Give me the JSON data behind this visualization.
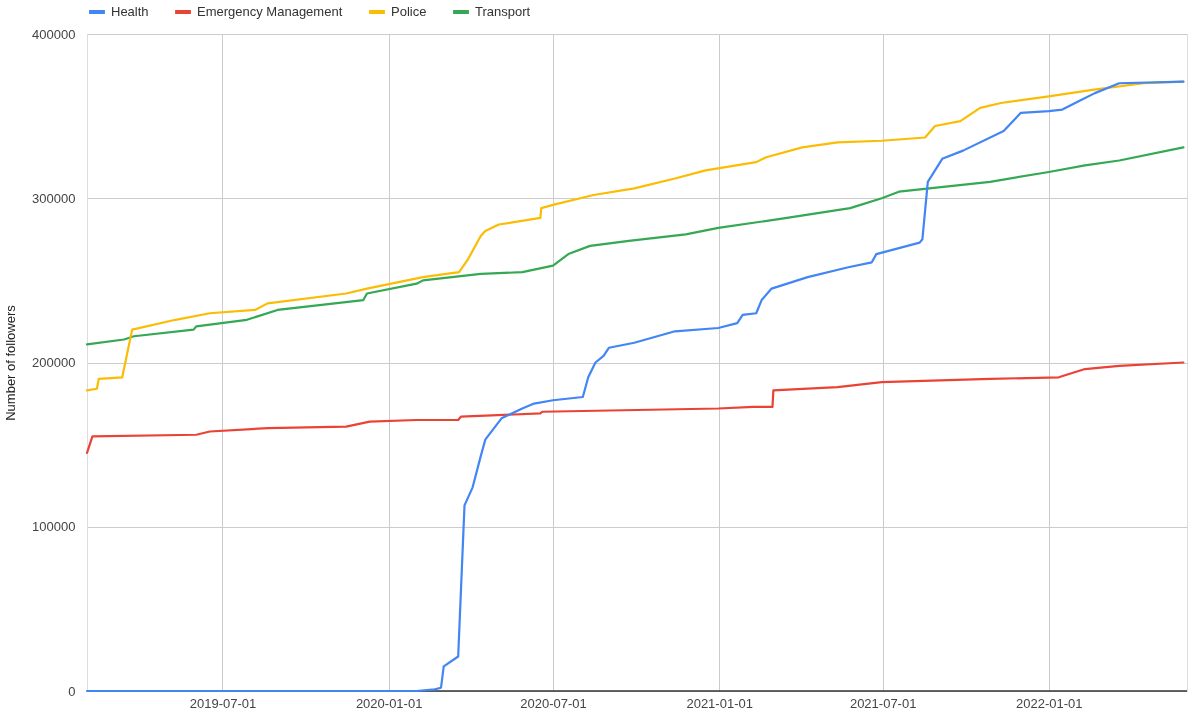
{
  "chart_data": {
    "type": "line",
    "ylabel": "Number of followers",
    "xlim": [
      "2019-02-01",
      "2022-06-03"
    ],
    "xticks": [
      "2019-07-01",
      "2020-01-01",
      "2020-07-01",
      "2021-01-01",
      "2021-07-01",
      "2022-01-01"
    ],
    "ylim": [
      0,
      400000
    ],
    "yticks": [
      0,
      100000,
      200000,
      300000,
      400000
    ],
    "grid": true,
    "legend": "top",
    "line_style": "solid",
    "series": [
      {
        "name": "Health",
        "color": "#4285f4",
        "x": [
          "2019-02-01",
          "2020-02-01",
          "2020-02-21",
          "2020-02-28",
          "2020-03-02",
          "2020-03-18",
          "2020-03-25",
          "2020-04-03",
          "2020-04-12",
          "2020-04-17",
          "2020-05-05",
          "2020-05-28",
          "2020-06-10",
          "2020-07-01",
          "2020-08-03",
          "2020-08-09",
          "2020-08-17",
          "2020-08-26",
          "2020-09-01",
          "2020-09-29",
          "2020-11-13",
          "2020-12-31",
          "2021-01-21",
          "2021-01-27",
          "2021-02-11",
          "2021-02-17",
          "2021-02-28",
          "2021-04-09",
          "2021-05-24",
          "2021-06-19",
          "2021-06-24",
          "2021-08-11",
          "2021-08-14",
          "2021-08-20",
          "2021-09-05",
          "2021-09-28",
          "2021-11-12",
          "2021-12-01",
          "2022-01-01",
          "2022-01-16",
          "2022-02-03",
          "2022-02-21",
          "2022-03-20",
          "2022-05-30"
        ],
        "values": [
          0,
          0,
          1000,
          2000,
          15000,
          21000,
          113000,
          124000,
          143000,
          153000,
          166000,
          172000,
          175000,
          177000,
          179000,
          191000,
          200000,
          204000,
          209000,
          212000,
          219000,
          221000,
          224000,
          229000,
          230000,
          238000,
          245000,
          252000,
          258000,
          261000,
          266000,
          273000,
          275000,
          310000,
          324000,
          329000,
          341000,
          352000,
          353000,
          354000,
          359000,
          364000,
          370000,
          371000
        ]
      },
      {
        "name": "Emergency Management",
        "color": "#ea4335",
        "x": [
          "2019-02-01",
          "2019-02-07",
          "2019-06-02",
          "2019-06-17",
          "2019-08-20",
          "2019-11-15",
          "2019-12-11",
          "2020-02-01",
          "2020-03-18",
          "2020-03-21",
          "2020-06-17",
          "2020-06-19",
          "2020-12-31",
          "2021-02-08",
          "2021-03-01",
          "2021-03-02",
          "2021-05-12",
          "2021-06-30",
          "2021-10-28",
          "2022-01-12",
          "2022-02-10",
          "2022-03-20",
          "2022-05-30"
        ],
        "values": [
          145000,
          155000,
          156000,
          158000,
          160000,
          161000,
          164000,
          165000,
          165000,
          167000,
          169000,
          170000,
          172000,
          173000,
          173000,
          183000,
          185000,
          188000,
          190000,
          191000,
          196000,
          198000,
          200000
        ]
      },
      {
        "name": "Police",
        "color": "#fbbc04",
        "x": [
          "2019-02-01",
          "2019-02-12",
          "2019-02-14",
          "2019-03-12",
          "2019-03-23",
          "2019-05-10",
          "2019-06-17",
          "2019-08-06",
          "2019-08-20",
          "2019-11-15",
          "2019-12-08",
          "2020-02-08",
          "2020-03-19",
          "2020-03-29",
          "2020-04-12",
          "2020-04-17",
          "2020-05-02",
          "2020-06-17",
          "2020-06-18",
          "2020-07-01",
          "2020-08-15",
          "2020-09-29",
          "2020-11-13",
          "2020-12-17",
          "2021-02-11",
          "2021-02-22",
          "2021-04-03",
          "2021-05-12",
          "2021-06-30",
          "2021-08-17",
          "2021-08-28",
          "2021-09-25",
          "2021-10-17",
          "2021-11-09",
          "2022-01-01",
          "2022-02-18",
          "2022-04-16",
          "2022-05-30"
        ],
        "values": [
          183000,
          184000,
          190000,
          191000,
          220000,
          226000,
          230000,
          232000,
          236000,
          242000,
          245000,
          252000,
          255000,
          263000,
          277000,
          280000,
          284000,
          288000,
          294000,
          296000,
          302000,
          306000,
          312000,
          317000,
          322000,
          325000,
          331000,
          334000,
          335000,
          337000,
          344000,
          347000,
          355000,
          358000,
          362000,
          366000,
          370000,
          371000
        ]
      },
      {
        "name": "Transport",
        "color": "#34a853",
        "x": [
          "2019-02-01",
          "2019-03-14",
          "2019-03-25",
          "2019-05-30",
          "2019-06-02",
          "2019-07-28",
          "2019-08-31",
          "2019-12-04",
          "2019-12-08",
          "2020-02-01",
          "2020-02-08",
          "2020-04-12",
          "2020-05-28",
          "2020-07-01",
          "2020-07-18",
          "2020-08-11",
          "2020-09-23",
          "2020-11-25",
          "2020-12-31",
          "2021-03-17",
          "2021-05-26",
          "2021-06-30",
          "2021-07-19",
          "2021-10-28",
          "2022-01-01",
          "2022-02-10",
          "2022-03-20",
          "2022-05-30"
        ],
        "values": [
          211000,
          214000,
          216000,
          220000,
          222000,
          226000,
          232000,
          238000,
          242000,
          248000,
          250000,
          254000,
          255000,
          259000,
          266000,
          271000,
          274000,
          278000,
          282000,
          288000,
          294000,
          300000,
          304000,
          310000,
          316000,
          320000,
          323000,
          331000
        ]
      }
    ]
  }
}
